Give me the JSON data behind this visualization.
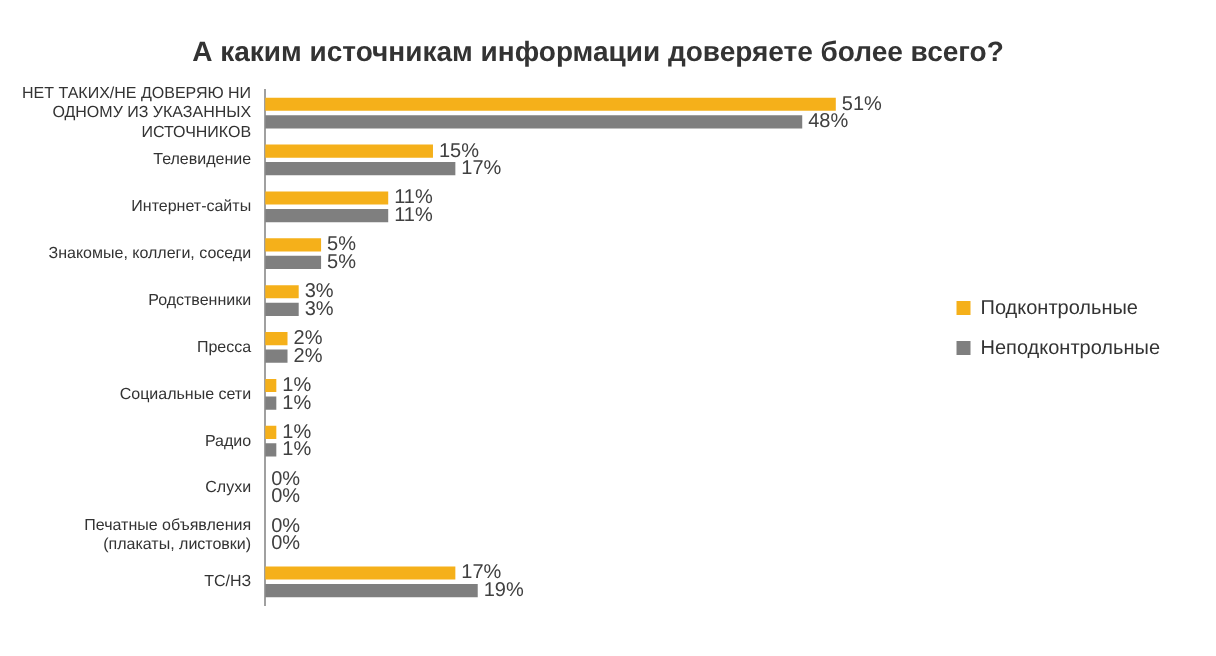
{
  "chart_data": {
    "type": "bar",
    "orientation": "horizontal",
    "title": "А каким источникам информации доверяете более всего?",
    "categories": [
      "НЕТ ТАКИХ/НЕ ДОВЕРЯЮ НИ ОДНОМУ ИЗ УКАЗАННЫХ ИСТОЧНИКОВ",
      "Телевидение",
      "Интернет-сайты",
      "Знакомые, коллеги, соседи",
      "Родственники",
      "Пресса",
      "Социальные сети",
      "Радио",
      "Слухи",
      "Печатные объявления (плакаты, листовки)",
      "ТС/НЗ"
    ],
    "series": [
      {
        "name": "Подконтрольные",
        "color": "#f5b01a",
        "values": [
          51,
          15,
          11,
          5,
          3,
          2,
          1,
          1,
          0,
          0,
          17
        ],
        "value_labels": [
          "51%",
          "15%",
          "11%",
          "5%",
          "3%",
          "2%",
          "1%",
          "1%",
          "0%",
          "0%",
          "17%"
        ]
      },
      {
        "name": "Неподконтрольные",
        "color": "#7f7f7f",
        "values": [
          48,
          17,
          11,
          5,
          3,
          2,
          1,
          1,
          0,
          0,
          19
        ],
        "value_labels": [
          "48%",
          "17%",
          "11%",
          "5%",
          "3%",
          "2%",
          "1%",
          "1%",
          "0%",
          "0%",
          "19%"
        ]
      }
    ],
    "legend": "right",
    "grid": false,
    "tick_labels": "y"
  }
}
